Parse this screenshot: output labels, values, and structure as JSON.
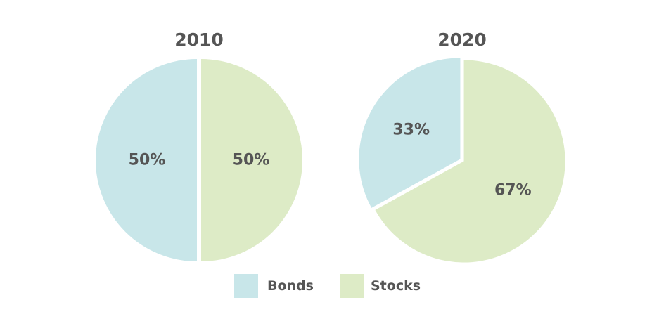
{
  "chart_data": [
    {
      "type": "pie",
      "title": "2010",
      "slices": [
        {
          "name": "Bonds",
          "value": 50,
          "label": "50%"
        },
        {
          "name": "Stocks",
          "value": 50,
          "label": "50%"
        }
      ]
    },
    {
      "type": "pie",
      "title": "2020",
      "slices": [
        {
          "name": "Bonds",
          "value": 33,
          "label": "33%"
        },
        {
          "name": "Stocks",
          "value": 67,
          "label": "67%"
        }
      ]
    }
  ],
  "legend": [
    {
      "name": "Bonds",
      "color": "#c8e6e9"
    },
    {
      "name": "Stocks",
      "color": "#ddebc6"
    }
  ],
  "colors": {
    "Bonds": "#c8e6e9",
    "Stocks": "#ddebc6",
    "text": "#555555"
  }
}
